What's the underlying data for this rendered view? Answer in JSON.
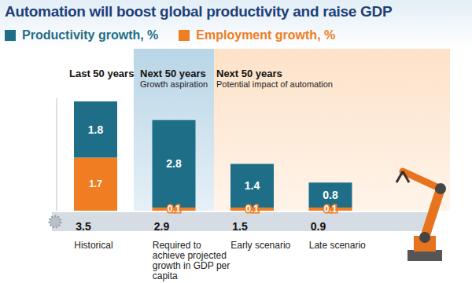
{
  "chart_data": {
    "type": "bar",
    "stacked": true,
    "title": "Automation will boost global productivity and raise GDP",
    "categories": [
      "Historical",
      "Required to achieve projected growth in GDP per capita",
      "Early scenario",
      "Late scenario"
    ],
    "series": [
      {
        "name": "Productivity growth, %",
        "color": "#1f6e87",
        "values": [
          1.8,
          2.8,
          1.4,
          0.8
        ]
      },
      {
        "name": "Employment growth, %",
        "color": "#f07d22",
        "values": [
          1.7,
          0.1,
          0.1,
          0.1
        ]
      }
    ],
    "totals": [
      3.5,
      2.9,
      1.5,
      0.9
    ],
    "annotations": [
      {
        "title": "Last 50 years"
      },
      {
        "title": "Next 50 years",
        "subtitle": "Growth aspiration"
      },
      {
        "title": "Next 50 years",
        "subtitle": "Potential impact of automation"
      }
    ],
    "ylim": [
      0,
      3.6
    ],
    "data_labels": true,
    "tick_labels": "x",
    "legend": "top"
  }
}
